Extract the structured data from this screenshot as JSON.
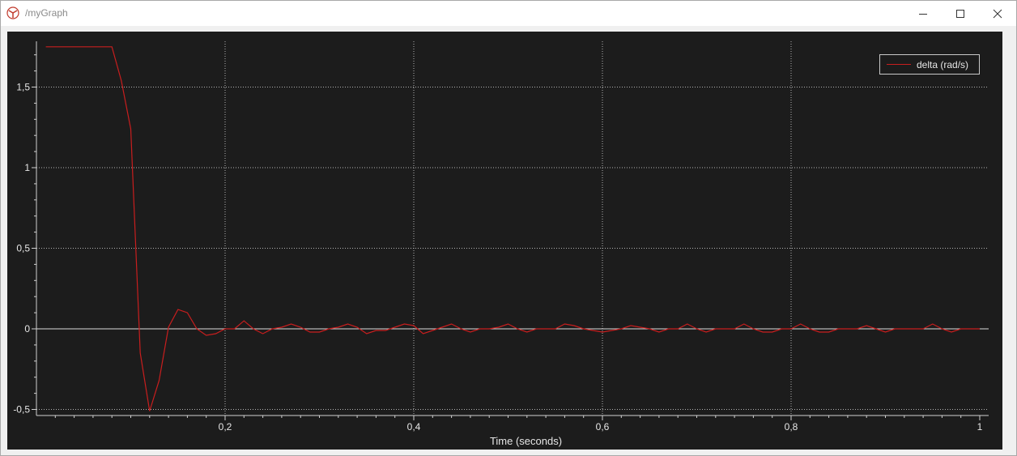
{
  "window": {
    "title": "/myGraph",
    "icon": "rviz-graph-app-icon",
    "controls": [
      "minimize-icon",
      "maximize-icon",
      "close-icon"
    ]
  },
  "colors": {
    "plot_background": "#1c1c1c",
    "series": "#c81e1e",
    "grid": "#b4b4b4",
    "text": "#e6e6e6"
  },
  "legend": {
    "placement": "top-right"
  },
  "chart_data": {
    "type": "line",
    "title": "",
    "xlabel": "Time (seconds)",
    "ylabel": "",
    "xlim": [
      0.0,
      1.0
    ],
    "ylim": [
      -0.5,
      1.75
    ],
    "grid": true,
    "x_ticks": [
      0.2,
      0.4,
      0.6,
      0.8,
      1.0
    ],
    "x_tick_labels": [
      "0,2",
      "0,4",
      "0,6",
      "0,8",
      "1"
    ],
    "y_ticks": [
      -0.5,
      0,
      0.5,
      1,
      1.5
    ],
    "y_tick_labels": [
      "-0,5",
      "0",
      "0,5",
      "1",
      "1,5"
    ],
    "series": [
      {
        "name": "delta (rad/s)",
        "x": [
          0.01,
          0.08,
          0.09,
          0.1,
          0.11,
          0.12,
          0.13,
          0.14,
          0.15,
          0.16,
          0.17,
          0.18,
          0.19,
          0.2,
          0.21,
          0.22,
          0.23,
          0.24,
          0.25,
          0.26,
          0.27,
          0.28,
          0.29,
          0.3,
          0.31,
          0.32,
          0.33,
          0.34,
          0.35,
          0.36,
          0.37,
          0.38,
          0.39,
          0.4,
          0.41,
          0.42,
          0.43,
          0.44,
          0.45,
          0.46,
          0.47,
          0.48,
          0.49,
          0.5,
          0.51,
          0.52,
          0.53,
          0.54,
          0.55,
          0.56,
          0.57,
          0.58,
          0.59,
          0.6,
          0.61,
          0.62,
          0.63,
          0.64,
          0.65,
          0.66,
          0.67,
          0.68,
          0.69,
          0.7,
          0.71,
          0.72,
          0.73,
          0.74,
          0.75,
          0.76,
          0.77,
          0.78,
          0.79,
          0.8,
          0.81,
          0.82,
          0.83,
          0.84,
          0.85,
          0.86,
          0.87,
          0.88,
          0.89,
          0.9,
          0.91,
          0.92,
          0.93,
          0.94,
          0.95,
          0.96,
          0.97,
          0.98,
          0.99,
          1.0
        ],
        "y": [
          1.75,
          1.75,
          1.54,
          1.24,
          -0.15,
          -0.51,
          -0.32,
          0.01,
          0.12,
          0.1,
          0.0,
          -0.04,
          -0.03,
          0.0,
          0.0,
          0.05,
          0.0,
          -0.03,
          0.0,
          0.01,
          0.03,
          0.01,
          -0.02,
          -0.02,
          0.0,
          0.01,
          0.03,
          0.01,
          -0.03,
          -0.01,
          -0.01,
          0.01,
          0.03,
          0.02,
          -0.03,
          -0.01,
          0.01,
          0.03,
          0.0,
          -0.02,
          0.0,
          0.0,
          0.01,
          0.03,
          0.0,
          -0.02,
          0.0,
          0.0,
          0.0,
          0.03,
          0.02,
          0.0,
          -0.01,
          -0.02,
          -0.01,
          0.0,
          0.02,
          0.01,
          0.0,
          -0.02,
          0.0,
          0.0,
          0.03,
          0.0,
          -0.02,
          0.0,
          0.0,
          0.0,
          0.03,
          0.0,
          -0.02,
          -0.02,
          0.0,
          0.0,
          0.03,
          0.0,
          -0.02,
          -0.02,
          0.0,
          0.0,
          0.0,
          0.02,
          0.0,
          -0.02,
          0.0,
          0.0,
          0.0,
          0.0,
          0.03,
          0.0,
          -0.02,
          0.0,
          0.0,
          0.0
        ]
      }
    ]
  }
}
